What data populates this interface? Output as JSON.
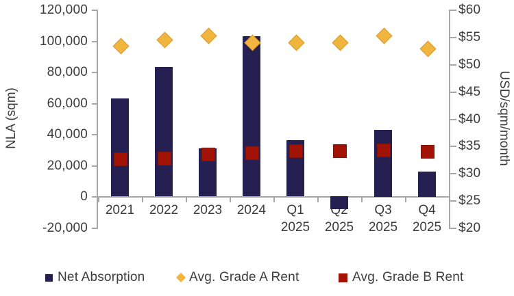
{
  "chart_data": {
    "type": "bar",
    "subtype": "combo-bar-scatter",
    "title": "",
    "categories": [
      "2021",
      "2022",
      "2023",
      "2024",
      "Q1 2025",
      "Q2 2025",
      "Q3 2025",
      "Q4 2025"
    ],
    "series": [
      {
        "name": "Net Absorption",
        "type": "bar",
        "axis": "left",
        "marker": "square",
        "color": "#252051",
        "values": [
          63000,
          83000,
          31000,
          103000,
          36000,
          -8000,
          43000,
          16000
        ]
      },
      {
        "name": "Avg. Grade A Rent",
        "type": "scatter",
        "axis": "right",
        "marker": "diamond",
        "color": "#F0B43F",
        "values": [
          53.4,
          54.5,
          55.3,
          54.0,
          54.1,
          54.1,
          55.3,
          52.9
        ]
      },
      {
        "name": "Avg. Grade B Rent",
        "type": "scatter",
        "axis": "right",
        "marker": "square",
        "color": "#A31305",
        "values": [
          32.7,
          32.8,
          33.5,
          33.8,
          34.2,
          34.2,
          34.3,
          34.1
        ]
      }
    ],
    "left_axis": {
      "label": "NLA (sqm)",
      "min": -20000,
      "max": 120000,
      "step": 20000,
      "tick_labels": [
        "-20,000",
        "0",
        "20,000",
        "40,000",
        "60,000",
        "80,000",
        "100,000",
        "120,000"
      ]
    },
    "right_axis": {
      "label": "USD/sqm/month",
      "min": 20,
      "max": 60,
      "step": 5,
      "tick_labels": [
        "$20",
        "$25",
        "$30",
        "$35",
        "$40",
        "$45",
        "$50",
        "$55",
        "$60"
      ]
    },
    "grid": false,
    "legend_position": "bottom",
    "colors": {
      "axis_line": "#a6a6a6",
      "text": "#3c3c3c",
      "background": "#ffffff"
    }
  }
}
